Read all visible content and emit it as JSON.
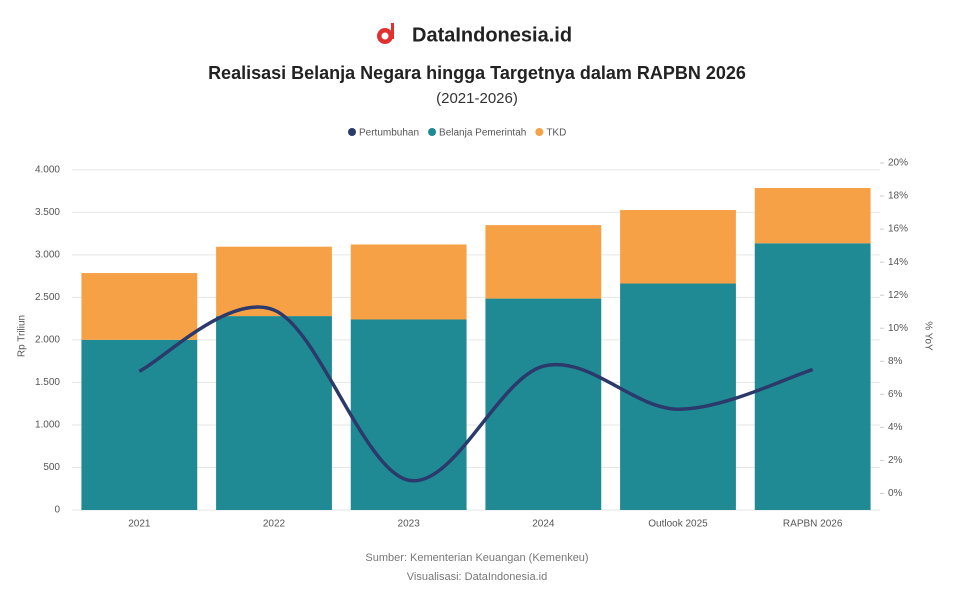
{
  "brand": "DataIndonesia.id",
  "chart_data": {
    "type": "bar-line",
    "title": "Realisasi Belanja Negara hingga Targetnya dalam RAPBN 2026",
    "subtitle": "(2021-2026)",
    "y_label": "Rp Triliun",
    "y2_label": "% YoY",
    "categories": [
      "2021",
      "2022",
      "2023",
      "2024",
      "Outlook 2025",
      "RAPBN 2026"
    ],
    "series": [
      {
        "name": "Pertumbuhan",
        "color": "#2b3a6b",
        "kind": "line",
        "axis": "y2",
        "values": [
          7.4,
          11.1,
          0.8,
          7.7,
          5.1,
          7.5
        ]
      },
      {
        "name": "Belanja Pemerintah",
        "color": "#1f8a93",
        "kind": "bar",
        "values": [
          2001,
          2280,
          2240,
          2486,
          2663,
          3136
        ]
      },
      {
        "name": "TKD",
        "color": "#f7a146",
        "kind": "bar",
        "values": [
          785,
          816,
          882,
          864,
          864,
          650
        ]
      }
    ],
    "ylim": [
      0,
      4080
    ],
    "yticks": [
      0,
      500,
      {
        "value": 1000,
        "label": "1.000"
      },
      {
        "value": 1500,
        "label": "1.500"
      },
      {
        "value": 2000,
        "label": "2.000"
      },
      {
        "value": 2500,
        "label": "2.500"
      },
      {
        "value": 3000,
        "label": "3.000"
      },
      {
        "value": 3500,
        "label": "3.500"
      },
      {
        "value": 4000,
        "label": "4.000"
      }
    ],
    "y2lim": [
      -1,
      20
    ],
    "y2ticks": [
      {
        "value": 0,
        "label": "0%"
      },
      {
        "value": 2,
        "label": "2%"
      },
      {
        "value": 4,
        "label": "4%"
      },
      {
        "value": 6,
        "label": "6%"
      },
      {
        "value": 8,
        "label": "8%"
      },
      {
        "value": 10,
        "label": "10%"
      },
      {
        "value": 12,
        "label": "12%"
      },
      {
        "value": 14,
        "label": "14%"
      },
      {
        "value": 16,
        "label": "16%"
      },
      {
        "value": 18,
        "label": "18%"
      },
      {
        "value": 20,
        "label": "20%"
      }
    ],
    "grid": true,
    "legend": "top",
    "source": "Sumber: Kementerian Keuangan (Kemenkeu)",
    "credit": "Visualisasi: DataIndonesia.id"
  }
}
